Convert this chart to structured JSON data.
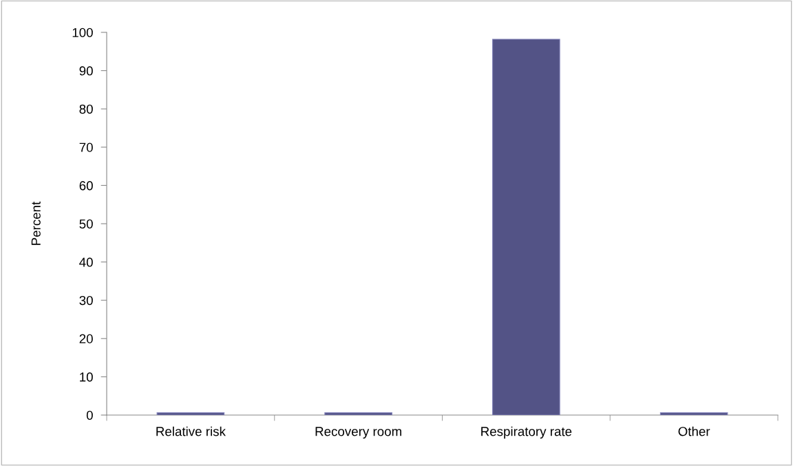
{
  "chart_data": {
    "type": "bar",
    "ylabel": "Percent",
    "categories": [
      "Relative risk",
      "Recovery room",
      "Respiratory rate",
      "Other"
    ],
    "values": [
      0.6,
      0.6,
      98.2,
      0.6
    ],
    "color": "#535386",
    "ylim": [
      0,
      100
    ],
    "yticks": [
      0,
      10,
      20,
      30,
      40,
      50,
      60,
      70,
      80,
      90,
      100
    ],
    "grid": false
  }
}
